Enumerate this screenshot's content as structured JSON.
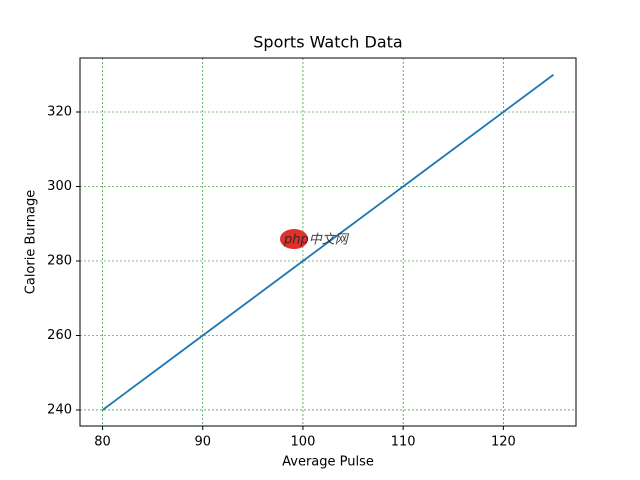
{
  "chart_data": {
    "type": "line",
    "title": "Sports Watch Data",
    "x_label": "Average Pulse",
    "y_label": "Calorie Burnage",
    "x": [
      80,
      85,
      90,
      95,
      100,
      105,
      110,
      115,
      120,
      125
    ],
    "series": [
      {
        "name": "Calorie Burnage",
        "color": "#1f77b4",
        "values": [
          240,
          250,
          260,
          270,
          280,
          290,
          300,
          310,
          320,
          330
        ]
      }
    ],
    "xlim": [
      77.75,
      127.25
    ],
    "xticks": [
      80,
      90,
      100,
      110,
      120
    ],
    "ylim": [
      235.7,
      334.5
    ],
    "yticks": [
      240,
      260,
      280,
      300,
      320
    ],
    "grid": true,
    "grid_color": "#008000",
    "watermark": "php中文网"
  }
}
